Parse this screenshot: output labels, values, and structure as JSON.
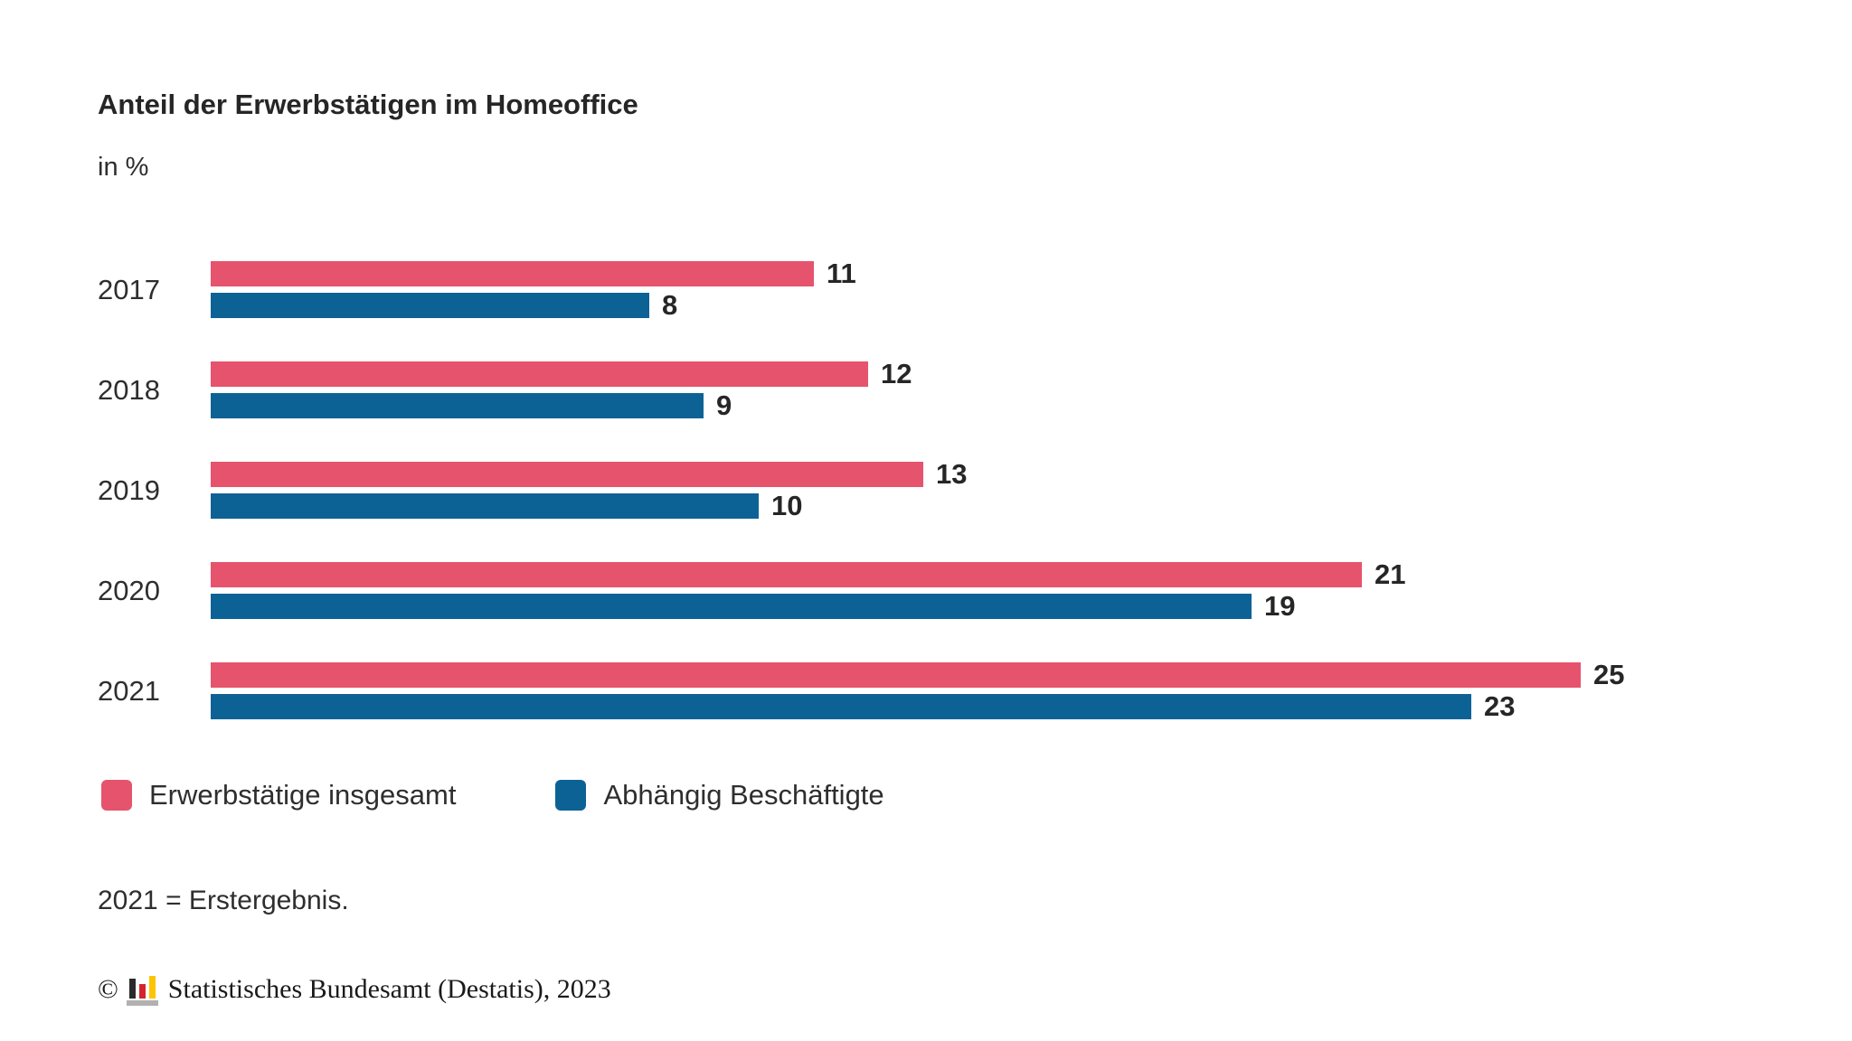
{
  "header": {
    "title": "Anteil der Erwerbstätigen im Homeoffice",
    "subtitle": "in %"
  },
  "chart_data": {
    "type": "bar",
    "orientation": "horizontal",
    "title": "Anteil der Erwerbstätigen im Homeoffice",
    "unit_label": "in %",
    "categories": [
      "2017",
      "2018",
      "2019",
      "2020",
      "2021"
    ],
    "series": [
      {
        "name": "Erwerbstätige insgesamt",
        "color": "#e6536d",
        "values": [
          11,
          12,
          13,
          21,
          25
        ]
      },
      {
        "name": "Abhängig Beschäftigte",
        "color": "#0d6295",
        "values": [
          8,
          9,
          10,
          19,
          23
        ]
      }
    ],
    "xlim": [
      0,
      25
    ],
    "value_labels": true,
    "grid": false,
    "legend_position": "bottom"
  },
  "legend": {
    "items": [
      {
        "label": "Erwerbstätige insgesamt",
        "color": "#e6536d"
      },
      {
        "label": "Abhängig Beschäftigte",
        "color": "#0d6295"
      }
    ]
  },
  "footnote": "2021 = Erstergebnis.",
  "source": {
    "copyright_symbol": "©",
    "logo_icon": "destatis-bar-chart-logo",
    "logo_colors": {
      "bar1": "#2b2b2b",
      "bar2": "#d5232e",
      "bar3": "#fdc400",
      "base": "#b1b1b1"
    },
    "text": "Statistisches Bundesamt (Destatis), 2023"
  },
  "colors": {
    "background": "#ffffff",
    "text": "#2e2e2e",
    "title_text": "#262626",
    "series_red": "#e6536d",
    "series_blue": "#0d6295"
  }
}
